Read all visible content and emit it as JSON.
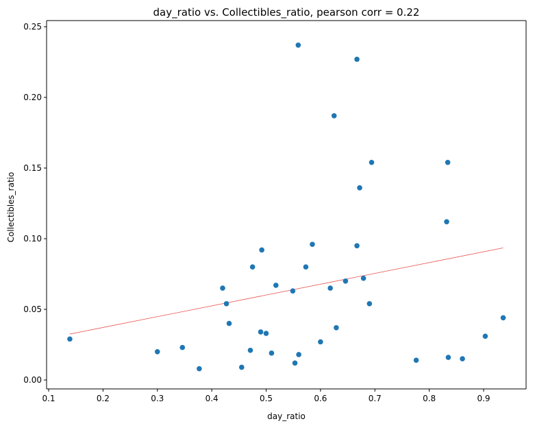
{
  "chart_data": {
    "type": "scatter",
    "title": "day_ratio vs. Collectibles_ratio, pearson corr = 0.22",
    "xlabel": "day_ratio",
    "ylabel": "Collectibles_ratio",
    "xlim": [
      0.1,
      0.95
    ],
    "ylim": [
      0.0,
      0.25
    ],
    "x_ticks": [
      "0.1",
      "0.2",
      "0.3",
      "0.4",
      "0.5",
      "0.6",
      "0.7",
      "0.8",
      "0.9"
    ],
    "y_ticks": [
      "0.00",
      "0.05",
      "0.10",
      "0.15",
      "0.20",
      "0.25"
    ],
    "grid": false,
    "point_color": "#1f77b4",
    "trend_color": "#e8504a",
    "points": [
      [
        0.139,
        0.029
      ],
      [
        0.3,
        0.02
      ],
      [
        0.346,
        0.023
      ],
      [
        0.377,
        0.008
      ],
      [
        0.42,
        0.065
      ],
      [
        0.427,
        0.054
      ],
      [
        0.432,
        0.04
      ],
      [
        0.455,
        0.009
      ],
      [
        0.471,
        0.021
      ],
      [
        0.475,
        0.08
      ],
      [
        0.49,
        0.034
      ],
      [
        0.492,
        0.092
      ],
      [
        0.5,
        0.033
      ],
      [
        0.51,
        0.019
      ],
      [
        0.518,
        0.067
      ],
      [
        0.549,
        0.063
      ],
      [
        0.553,
        0.012
      ],
      [
        0.56,
        0.018
      ],
      [
        0.559,
        0.237
      ],
      [
        0.573,
        0.08
      ],
      [
        0.585,
        0.096
      ],
      [
        0.6,
        0.027
      ],
      [
        0.618,
        0.065
      ],
      [
        0.625,
        0.187
      ],
      [
        0.629,
        0.037
      ],
      [
        0.646,
        0.07
      ],
      [
        0.667,
        0.095
      ],
      [
        0.667,
        0.227
      ],
      [
        0.672,
        0.136
      ],
      [
        0.679,
        0.072
      ],
      [
        0.69,
        0.054
      ],
      [
        0.694,
        0.154
      ],
      [
        0.776,
        0.014
      ],
      [
        0.832,
        0.112
      ],
      [
        0.834,
        0.154
      ],
      [
        0.835,
        0.016
      ],
      [
        0.861,
        0.015
      ],
      [
        0.903,
        0.031
      ],
      [
        0.936,
        0.044
      ]
    ],
    "trend_line": {
      "x": [
        0.139,
        0.936
      ],
      "y": [
        0.0325,
        0.0935
      ]
    }
  }
}
